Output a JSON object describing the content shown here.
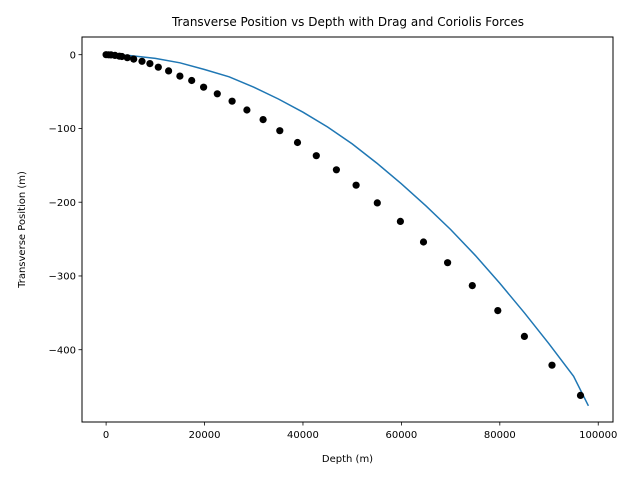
{
  "chart_data": {
    "type": "line",
    "title": "Transverse Position vs Depth with Drag and Coriolis Forces",
    "xlabel": "Depth (m)",
    "ylabel": "Transverse Position (m)",
    "xlim": [
      -4900,
      103000
    ],
    "ylim": [
      -498,
      24
    ],
    "xticks": [
      0,
      20000,
      40000,
      60000,
      80000,
      100000
    ],
    "xtick_labels": [
      "0",
      "20000",
      "40000",
      "60000",
      "80000",
      "100000"
    ],
    "yticks": [
      0,
      -100,
      -200,
      -300,
      -400
    ],
    "ytick_labels": [
      "0",
      "−100",
      "−200",
      "−300",
      "−400"
    ],
    "grid": false,
    "colors": {
      "line": "#1f77b4",
      "marker": "#000000"
    },
    "series": [
      {
        "kind": "line",
        "x": [
          0,
          5000,
          10000,
          15000,
          20000,
          25000,
          30000,
          35000,
          40000,
          45000,
          50000,
          55000,
          60000,
          65000,
          70000,
          75000,
          80000,
          85000,
          90000,
          95000,
          98000
        ],
        "y": [
          0,
          -1.2,
          -5,
          -11,
          -20,
          -30,
          -44,
          -60,
          -78,
          -98,
          -121,
          -147,
          -175,
          -205,
          -237,
          -272,
          -310,
          -350,
          -392,
          -436,
          -476
        ]
      },
      {
        "kind": "scatter",
        "x": [
          0,
          500,
          1000,
          1800,
          2700,
          3200,
          4300,
          5600,
          7300,
          8900,
          10600,
          12700,
          15000,
          17400,
          19800,
          22600,
          25600,
          28600,
          31900,
          35300,
          38900,
          42700,
          46800,
          50800,
          55100,
          59800,
          64500,
          69400,
          74400,
          79600,
          85000,
          90600,
          96400
        ],
        "y": [
          0,
          -0.1,
          -0.3,
          -1,
          -2,
          -2.5,
          -4,
          -6,
          -9,
          -12,
          -17,
          -22,
          -29,
          -35,
          -44,
          -53,
          -63,
          -75,
          -88,
          -103,
          -119,
          -137,
          -156,
          -177,
          -201,
          -226,
          -254,
          -282,
          -313,
          -347,
          -382,
          -421,
          -462
        ]
      }
    ]
  }
}
